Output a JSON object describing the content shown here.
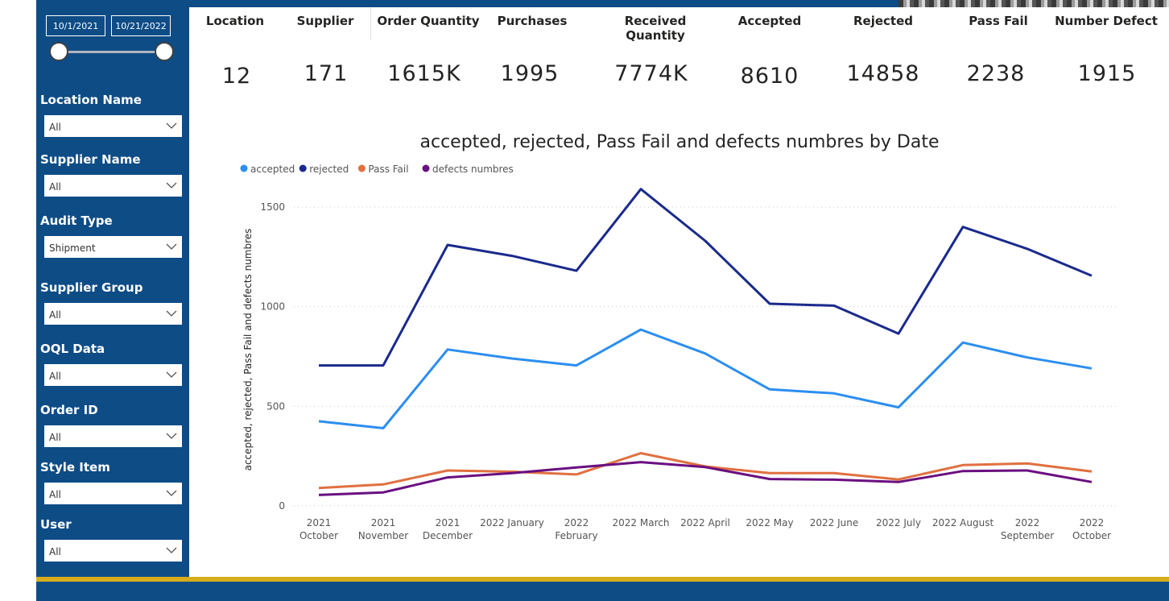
{
  "date_range": {
    "start": "10/1/2021",
    "end": "10/21/2022"
  },
  "filters": [
    {
      "label": "Location Name",
      "value": "All"
    },
    {
      "label": "Supplier Name",
      "value": "All"
    },
    {
      "label": "Audit Type",
      "value": "Shipment"
    },
    {
      "label": "Supplier Group",
      "value": "All"
    },
    {
      "label": "OQL Data",
      "value": "All"
    },
    {
      "label": "Order ID",
      "value": "All"
    },
    {
      "label": "Style Item",
      "value": "All"
    },
    {
      "label": "User",
      "value": "All"
    }
  ],
  "kpis": [
    {
      "label": "Location",
      "value": "12"
    },
    {
      "label": "Supplier",
      "value": "171"
    },
    {
      "label": "Order Quantity",
      "value": "1615K"
    },
    {
      "label": "Purchases",
      "value": "1995"
    },
    {
      "label": "Received Quantity",
      "value": "7774K"
    },
    {
      "label": "Accepted",
      "value": "8610"
    },
    {
      "label": "Rejected",
      "value": "14858"
    },
    {
      "label": "Pass Fail",
      "value": "2238"
    },
    {
      "label": "Number Defect",
      "value": "1915"
    }
  ],
  "chart_data": {
    "type": "line",
    "title": "accepted, rejected, Pass Fail and defects numbres by Date",
    "xlabel": "",
    "ylabel": "accepted, rejected, Pass Fail and defects numbres",
    "ylim": [
      0,
      1500
    ],
    "yticks": [
      0,
      500,
      1000,
      1500
    ],
    "grid": true,
    "legend_position": "top-left",
    "categories": [
      [
        "2021",
        "October"
      ],
      [
        "2021",
        "November"
      ],
      [
        "2021",
        "December"
      ],
      [
        "2022 January"
      ],
      [
        "2022",
        "February"
      ],
      [
        "2022 March"
      ],
      [
        "2022 April"
      ],
      [
        "2022 May"
      ],
      [
        "2022 June"
      ],
      [
        "2022 July"
      ],
      [
        "2022 August"
      ],
      [
        "2022",
        "September"
      ],
      [
        "2022",
        "October"
      ]
    ],
    "series": [
      {
        "name": "accepted",
        "color": "#2b8ef0",
        "values": [
          425,
          390,
          785,
          740,
          705,
          885,
          765,
          585,
          565,
          495,
          820,
          745,
          690
        ]
      },
      {
        "name": "rejected",
        "color": "#1a2a8c",
        "values": [
          705,
          705,
          1310,
          1255,
          1180,
          1590,
          1330,
          1015,
          1005,
          865,
          1400,
          1290,
          1155
        ]
      },
      {
        "name": "Pass Fail",
        "color": "#e07040",
        "values": [
          90,
          108,
          178,
          172,
          158,
          265,
          198,
          165,
          165,
          133,
          205,
          213,
          173
        ]
      },
      {
        "name": "defects numbres",
        "color": "#6a0f80",
        "values": [
          55,
          68,
          143,
          165,
          193,
          220,
          195,
          135,
          132,
          120,
          175,
          178,
          120
        ]
      }
    ]
  }
}
